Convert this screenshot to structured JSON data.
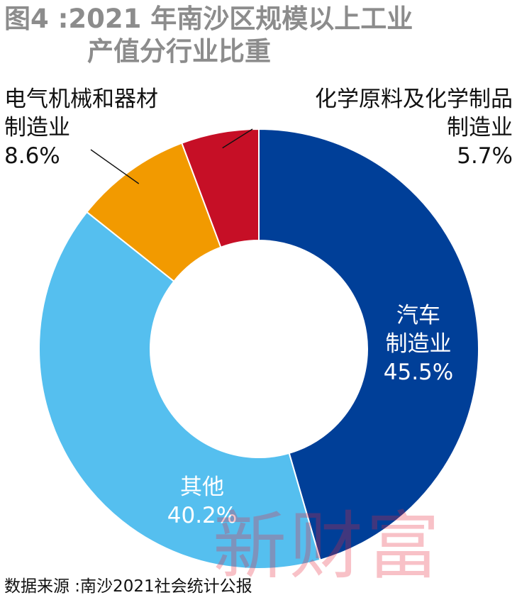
{
  "title": {
    "line1": "图4 :2021 年南沙区规模以上工业",
    "line2": "产值分行业比重"
  },
  "source": "数据来源 :南沙2021社会统计公报",
  "watermark": "新财富",
  "colors": {
    "auto": "#003f98",
    "other": "#55bfef",
    "electrical": "#f29a00",
    "chemical": "#c60f26",
    "title": "#8c8c8c"
  },
  "chart_data": {
    "type": "pie",
    "donut": true,
    "title": "图4 :2021 年南沙区规模以上工业产值分行业比重",
    "slices": [
      {
        "key": "auto",
        "label_lines": [
          "汽车",
          "制造业"
        ],
        "value": 45.5,
        "value_label": "45.5%"
      },
      {
        "key": "other",
        "label_lines": [
          "其他"
        ],
        "value": 40.2,
        "value_label": "40.2%"
      },
      {
        "key": "electrical",
        "label_lines": [
          "电气机械和器材",
          "制造业"
        ],
        "value": 8.6,
        "value_label": "8.6%"
      },
      {
        "key": "chemical",
        "label_lines": [
          "化学原料及化学制品",
          "制造业"
        ],
        "value": 5.7,
        "value_label": "5.7%"
      }
    ]
  }
}
